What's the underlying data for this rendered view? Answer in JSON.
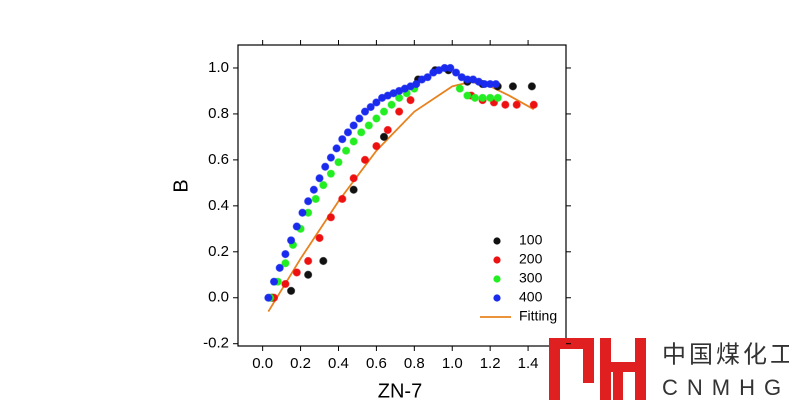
{
  "chart_data": {
    "type": "scatter",
    "xlabel": "ZN-7",
    "ylabel": "B",
    "xlim": [
      -0.13,
      1.6
    ],
    "ylim": [
      -0.21,
      1.1
    ],
    "xticks": [
      {
        "value": 0.0,
        "label": "0.0"
      },
      {
        "value": 0.2,
        "label": "0.2"
      },
      {
        "value": 0.4,
        "label": "0.4"
      },
      {
        "value": 0.6,
        "label": "0.6"
      },
      {
        "value": 0.8,
        "label": "0.8"
      },
      {
        "value": 1.0,
        "label": "1.0"
      },
      {
        "value": 1.2,
        "label": "1.2"
      },
      {
        "value": 1.4,
        "label": "1.4"
      }
    ],
    "yticks": [
      {
        "value": -0.2,
        "label": "-0.2"
      },
      {
        "value": 0.0,
        "label": "0.0"
      },
      {
        "value": 0.2,
        "label": "0.2"
      },
      {
        "value": 0.4,
        "label": "0.4"
      },
      {
        "value": 0.6,
        "label": "0.6"
      },
      {
        "value": 0.8,
        "label": "0.8"
      },
      {
        "value": 1.0,
        "label": "1.0"
      }
    ],
    "legend": "lower right",
    "series": [
      {
        "name": "100",
        "color": "#111111",
        "x": [
          0.05,
          0.15,
          0.24,
          0.32,
          0.48,
          0.64,
          0.82,
          0.91,
          0.98,
          1.08,
          1.16,
          1.24,
          1.32,
          1.42
        ],
        "values": [
          0.0,
          0.03,
          0.1,
          0.16,
          0.47,
          0.7,
          0.95,
          0.99,
          0.99,
          0.94,
          0.93,
          0.92,
          0.92,
          0.92
        ]
      },
      {
        "name": "200",
        "color": "#ee1111",
        "x": [
          0.06,
          0.12,
          0.18,
          0.24,
          0.3,
          0.36,
          0.42,
          0.48,
          0.54,
          0.6,
          0.66,
          0.72,
          0.78,
          1.1,
          1.16,
          1.22,
          1.28,
          1.34,
          1.43
        ],
        "values": [
          0.0,
          0.06,
          0.11,
          0.16,
          0.26,
          0.35,
          0.43,
          0.52,
          0.6,
          0.66,
          0.73,
          0.81,
          0.86,
          0.88,
          0.86,
          0.85,
          0.84,
          0.84,
          0.84
        ]
      },
      {
        "name": "300",
        "color": "#22ee22",
        "x": [
          0.04,
          0.08,
          0.12,
          0.16,
          0.2,
          0.24,
          0.28,
          0.32,
          0.36,
          0.4,
          0.44,
          0.48,
          0.52,
          0.56,
          0.6,
          0.64,
          0.68,
          0.72,
          0.76,
          0.8,
          1.04,
          1.08,
          1.12,
          1.16,
          1.2,
          1.24
        ],
        "values": [
          0.0,
          0.07,
          0.15,
          0.23,
          0.3,
          0.37,
          0.43,
          0.49,
          0.54,
          0.59,
          0.64,
          0.68,
          0.72,
          0.75,
          0.78,
          0.81,
          0.84,
          0.87,
          0.89,
          0.91,
          0.91,
          0.88,
          0.87,
          0.87,
          0.87,
          0.87
        ]
      },
      {
        "name": "400",
        "color": "#1a2bee",
        "x": [
          0.03,
          0.06,
          0.09,
          0.12,
          0.15,
          0.18,
          0.21,
          0.24,
          0.27,
          0.3,
          0.33,
          0.36,
          0.39,
          0.42,
          0.45,
          0.48,
          0.51,
          0.54,
          0.57,
          0.6,
          0.63,
          0.66,
          0.69,
          0.72,
          0.75,
          0.78,
          0.81,
          0.84,
          0.87,
          0.9,
          0.93,
          0.96,
          0.99,
          1.02,
          1.05,
          1.08,
          1.11,
          1.14,
          1.17,
          1.2,
          1.23
        ],
        "values": [
          0.0,
          0.07,
          0.13,
          0.19,
          0.25,
          0.31,
          0.37,
          0.42,
          0.47,
          0.52,
          0.57,
          0.61,
          0.65,
          0.69,
          0.72,
          0.75,
          0.78,
          0.81,
          0.83,
          0.85,
          0.87,
          0.88,
          0.89,
          0.9,
          0.91,
          0.92,
          0.93,
          0.95,
          0.96,
          0.98,
          0.99,
          1.0,
          1.0,
          0.98,
          0.96,
          0.95,
          0.95,
          0.94,
          0.93,
          0.93,
          0.93
        ]
      }
    ],
    "fit": {
      "name": "Fitting",
      "color": "#e8821e",
      "x": [
        0.03,
        0.2,
        0.4,
        0.6,
        0.8,
        1.0,
        1.1,
        1.2,
        1.3,
        1.43
      ],
      "values": [
        -0.06,
        0.17,
        0.42,
        0.64,
        0.81,
        0.92,
        0.94,
        0.92,
        0.88,
        0.82
      ]
    }
  },
  "watermark": {
    "line1": "中国煤化工",
    "line2": "CNMHG"
  }
}
